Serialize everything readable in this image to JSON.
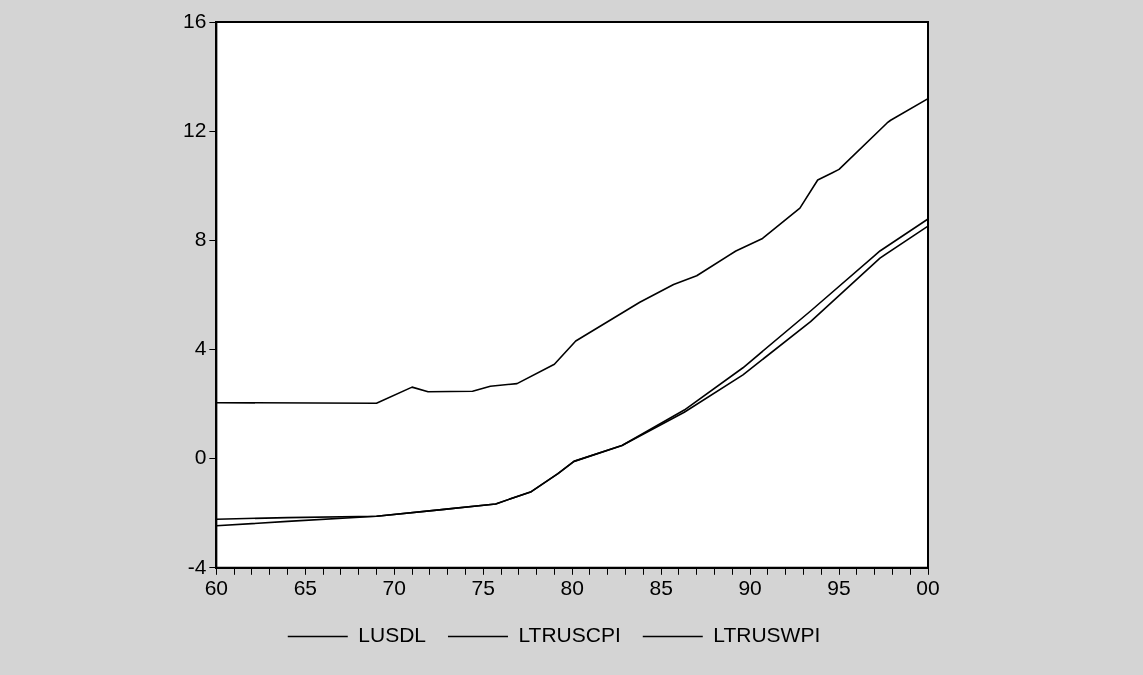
{
  "chart_data": {
    "type": "line",
    "xlim": [
      1960,
      2000
    ],
    "xticks": [
      {
        "value": 1960,
        "label": "60"
      },
      {
        "value": 1961,
        "label": null
      },
      {
        "value": 1962,
        "label": null
      },
      {
        "value": 1963,
        "label": null
      },
      {
        "value": 1964,
        "label": null
      },
      {
        "value": 1965,
        "label": "65"
      },
      {
        "value": 1966,
        "label": null
      },
      {
        "value": 1967,
        "label": null
      },
      {
        "value": 1968,
        "label": null
      },
      {
        "value": 1969,
        "label": null
      },
      {
        "value": 1970,
        "label": "70"
      },
      {
        "value": 1971,
        "label": null
      },
      {
        "value": 1972,
        "label": null
      },
      {
        "value": 1973,
        "label": null
      },
      {
        "value": 1974,
        "label": null
      },
      {
        "value": 1975,
        "label": "75"
      },
      {
        "value": 1976,
        "label": null
      },
      {
        "value": 1977,
        "label": null
      },
      {
        "value": 1978,
        "label": null
      },
      {
        "value": 1979,
        "label": null
      },
      {
        "value": 1980,
        "label": "80"
      },
      {
        "value": 1981,
        "label": null
      },
      {
        "value": 1982,
        "label": null
      },
      {
        "value": 1983,
        "label": null
      },
      {
        "value": 1984,
        "label": null
      },
      {
        "value": 1985,
        "label": "85"
      },
      {
        "value": 1986,
        "label": null
      },
      {
        "value": 1987,
        "label": null
      },
      {
        "value": 1988,
        "label": null
      },
      {
        "value": 1989,
        "label": null
      },
      {
        "value": 1990,
        "label": "90"
      },
      {
        "value": 1991,
        "label": null
      },
      {
        "value": 1992,
        "label": null
      },
      {
        "value": 1993,
        "label": null
      },
      {
        "value": 1994,
        "label": null
      },
      {
        "value": 1995,
        "label": "95"
      },
      {
        "value": 1996,
        "label": null
      },
      {
        "value": 1997,
        "label": null
      },
      {
        "value": 1998,
        "label": null
      },
      {
        "value": 1999,
        "label": null
      },
      {
        "value": 2000,
        "label": "00"
      }
    ],
    "ylim": [
      -4,
      16
    ],
    "yticks": [
      -4,
      0,
      4,
      8,
      12,
      16
    ],
    "grid": false,
    "legend": "bottom",
    "marker": "none",
    "line_style": "solid",
    "series": [
      {
        "name": "LUSDL",
        "color": "#000000",
        "x": [
          1960,
          1969,
          1971,
          1971.9,
          1974.4,
          1975.4,
          1976.9,
          1979,
          1980.2,
          1983.8,
          1985.7,
          1987,
          1989.2,
          1990.7,
          1992.8,
          1993.8,
          1994.6,
          1995,
          1997.7,
          1997.9,
          2000
        ],
        "values": [
          2.05,
          2.03,
          2.62,
          2.45,
          2.47,
          2.65,
          2.75,
          3.46,
          4.31,
          5.73,
          6.38,
          6.7,
          7.61,
          8.07,
          9.18,
          10.21,
          10.47,
          10.6,
          12.3,
          12.4,
          13.19
        ]
      },
      {
        "name": "LTRUSCPI",
        "color": "#000000",
        "x": [
          1960,
          1964,
          1969,
          1972.8,
          1975.7,
          1977.7,
          1979.2,
          1980.1,
          1982.8,
          1986.3,
          1989.6,
          1993.4,
          1997.3,
          2000
        ],
        "values": [
          -2.46,
          -2.3,
          -2.11,
          -1.86,
          -1.66,
          -1.21,
          -0.55,
          -0.1,
          0.48,
          1.78,
          3.33,
          5.41,
          7.61,
          8.78
        ]
      },
      {
        "name": "LTRUSWPI",
        "color": "#000000",
        "x": [
          1960,
          1964,
          1969,
          1972.8,
          1975.7,
          1977.7,
          1979.2,
          1980.1,
          1982.8,
          1986.3,
          1989.6,
          1993.4,
          1997.3,
          2000
        ],
        "values": [
          -2.22,
          -2.16,
          -2.11,
          -1.86,
          -1.66,
          -1.21,
          -0.55,
          -0.1,
          0.48,
          1.7,
          3.07,
          5.02,
          7.35,
          8.52
        ]
      }
    ]
  }
}
